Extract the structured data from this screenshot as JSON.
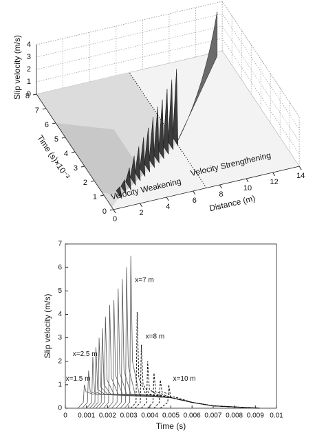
{
  "chart_data": [
    {
      "type": "surface3d",
      "zlabel": "Slip velocity (m/s)",
      "ylabel": "Time (s)×10⁻³",
      "xlabel": "Distance (m)",
      "xlim": [
        0,
        14
      ],
      "xticks": [
        0,
        2,
        4,
        6,
        8,
        10,
        12,
        14
      ],
      "ylim": [
        0,
        8
      ],
      "yticks": [
        0,
        1,
        2,
        3,
        4,
        5,
        6,
        7,
        8
      ],
      "zlim": [
        0,
        4
      ],
      "zticks": [
        0,
        1,
        2,
        3,
        4
      ],
      "grid": true,
      "annotations": [
        "Velocity Weakening",
        "Velocity Strengthening"
      ],
      "series": [
        {
          "color": "#3c3c3c",
          "x": [
            1,
            1.5,
            2,
            2.5,
            3,
            3.5,
            4,
            4.5,
            5,
            5.5,
            6,
            6.5,
            7
          ],
          "y": [
            0.7,
            0.9,
            1.1,
            1.3,
            1.5,
            1.7,
            1.9,
            2.1,
            2.3,
            2.5,
            2.7,
            2.9,
            3.1
          ],
          "values": [
            0.8,
            1.0,
            1.6,
            2.2,
            2.6,
            3.0,
            3.4,
            3.9,
            4.4,
            4.6,
            5.1,
            5.5,
            6.0
          ]
        }
      ]
    },
    {
      "type": "line",
      "xlabel": "Time (s)",
      "ylabel": "Slip velocity (m/s)",
      "xlim": [
        0,
        0.01
      ],
      "xticks": [
        0,
        0.001,
        0.002,
        0.003,
        0.004,
        0.005,
        0.006,
        0.007,
        0.008,
        0.009,
        0.01
      ],
      "ylim": [
        0,
        7
      ],
      "yticks": [
        0,
        1,
        2,
        3,
        4,
        5,
        6,
        7
      ],
      "annotations": [
        "x=1.5 m",
        "x=2.5 m",
        "x=7 m",
        "x=8 m",
        "x=10 m"
      ],
      "series": [
        {
          "color": "#555555",
          "dashed": false,
          "x": [
            0.0006,
            0.00085,
            0.0009,
            0.00098,
            0.0013,
            0.005,
            0.006,
            0.007,
            0.0092
          ],
          "values": [
            0,
            0.25,
            1.0,
            0.7,
            0.6,
            0.45,
            0.25,
            0.1,
            0
          ]
        },
        {
          "color": "#555555",
          "dashed": false,
          "x": [
            0.0008,
            0.00105,
            0.0011,
            0.00118,
            0.0015,
            0.005,
            0.006,
            0.007,
            0.0092
          ],
          "values": [
            0,
            0.25,
            1.6,
            0.7,
            0.6,
            0.45,
            0.25,
            0.1,
            0
          ]
        },
        {
          "color": "#555555",
          "dashed": false,
          "x": [
            0.001,
            0.00125,
            0.0013,
            0.00138,
            0.0017,
            0.005,
            0.006,
            0.007,
            0.0092
          ],
          "values": [
            0,
            0.25,
            2.2,
            0.7,
            0.6,
            0.45,
            0.25,
            0.1,
            0
          ]
        },
        {
          "color": "#555555",
          "dashed": false,
          "x": [
            0.00115,
            0.0014,
            0.00145,
            0.00153,
            0.00185,
            0.005,
            0.006,
            0.007,
            0.0092
          ],
          "values": [
            0,
            0.25,
            2.6,
            0.8,
            0.6,
            0.45,
            0.25,
            0.1,
            0
          ]
        },
        {
          "color": "#555555",
          "dashed": false,
          "x": [
            0.0013,
            0.00155,
            0.0016,
            0.00168,
            0.002,
            0.005,
            0.006,
            0.007,
            0.0092
          ],
          "values": [
            0,
            0.25,
            3.0,
            0.9,
            0.6,
            0.45,
            0.25,
            0.1,
            0
          ]
        },
        {
          "color": "#555555",
          "dashed": false,
          "x": [
            0.00145,
            0.0017,
            0.00175,
            0.00183,
            0.00215,
            0.005,
            0.006,
            0.007,
            0.0092
          ],
          "values": [
            0,
            0.25,
            3.4,
            1.0,
            0.6,
            0.45,
            0.25,
            0.1,
            0
          ]
        },
        {
          "color": "#555555",
          "dashed": false,
          "x": [
            0.0016,
            0.00185,
            0.0019,
            0.00198,
            0.0023,
            0.005,
            0.006,
            0.007,
            0.0092
          ],
          "values": [
            0,
            0.25,
            3.9,
            1.2,
            0.6,
            0.45,
            0.25,
            0.1,
            0
          ]
        },
        {
          "color": "#555555",
          "dashed": false,
          "x": [
            0.0018,
            0.00205,
            0.0021,
            0.00218,
            0.0025,
            0.005,
            0.006,
            0.007,
            0.0092
          ],
          "values": [
            0,
            0.25,
            4.4,
            1.3,
            0.6,
            0.45,
            0.25,
            0.1,
            0
          ]
        },
        {
          "color": "#555555",
          "dashed": false,
          "x": [
            0.002,
            0.00225,
            0.0023,
            0.00238,
            0.0027,
            0.005,
            0.006,
            0.007,
            0.0092
          ],
          "values": [
            0,
            0.25,
            4.6,
            1.4,
            0.6,
            0.45,
            0.25,
            0.1,
            0
          ]
        },
        {
          "color": "#555555",
          "dashed": false,
          "x": [
            0.0022,
            0.00245,
            0.0025,
            0.00258,
            0.0029,
            0.005,
            0.006,
            0.007,
            0.0092
          ],
          "values": [
            0,
            0.25,
            5.1,
            1.5,
            0.6,
            0.45,
            0.25,
            0.1,
            0
          ]
        },
        {
          "color": "#555555",
          "dashed": false,
          "x": [
            0.0024,
            0.00265,
            0.0027,
            0.00278,
            0.0031,
            0.005,
            0.006,
            0.007,
            0.0092
          ],
          "values": [
            0,
            0.25,
            5.5,
            1.6,
            0.6,
            0.45,
            0.25,
            0.1,
            0
          ]
        },
        {
          "color": "#555555",
          "dashed": false,
          "x": [
            0.0026,
            0.00285,
            0.0029,
            0.00298,
            0.0033,
            0.005,
            0.006,
            0.007,
            0.0092
          ],
          "values": [
            0,
            0.25,
            6.0,
            1.8,
            0.6,
            0.45,
            0.25,
            0.1,
            0
          ]
        },
        {
          "color": "#555555",
          "dashed": false,
          "x": [
            0.0028,
            0.00305,
            0.0031,
            0.00318,
            0.0035,
            0.005,
            0.006,
            0.007,
            0.0092
          ],
          "values": [
            0,
            0.25,
            6.5,
            2.0,
            0.6,
            0.45,
            0.25,
            0.1,
            0
          ]
        },
        {
          "color": "#111111",
          "dashed": true,
          "x": [
            0.0031,
            0.00335,
            0.0034,
            0.00348,
            0.0038,
            0.005,
            0.006,
            0.007,
            0.0092
          ],
          "values": [
            0,
            0.25,
            4.1,
            1.3,
            0.6,
            0.45,
            0.25,
            0.1,
            0
          ]
        },
        {
          "color": "#111111",
          "dashed": true,
          "x": [
            0.0033,
            0.00355,
            0.0036,
            0.00368,
            0.004,
            0.005,
            0.006,
            0.007,
            0.0092
          ],
          "values": [
            0,
            0.25,
            2.7,
            1.0,
            0.6,
            0.45,
            0.25,
            0.1,
            0
          ]
        },
        {
          "color": "#111111",
          "dashed": true,
          "x": [
            0.0036,
            0.00385,
            0.0039,
            0.00398,
            0.0043,
            0.005,
            0.006,
            0.007,
            0.0092
          ],
          "values": [
            0,
            0.25,
            2.0,
            0.8,
            0.6,
            0.45,
            0.25,
            0.1,
            0
          ]
        },
        {
          "color": "#111111",
          "dashed": true,
          "x": [
            0.0039,
            0.00415,
            0.0042,
            0.00428,
            0.0046,
            0.005,
            0.006,
            0.007,
            0.0092
          ],
          "values": [
            0,
            0.25,
            1.5,
            0.7,
            0.6,
            0.45,
            0.25,
            0.1,
            0
          ]
        },
        {
          "color": "#111111",
          "dashed": true,
          "x": [
            0.0042,
            0.00445,
            0.0045,
            0.00458,
            0.0049,
            0.005,
            0.006,
            0.007,
            0.0092
          ],
          "values": [
            0,
            0.25,
            1.2,
            0.7,
            0.6,
            0.45,
            0.25,
            0.1,
            0
          ]
        },
        {
          "color": "#111111",
          "dashed": true,
          "x": [
            0.0045,
            0.00485,
            0.0049,
            0.00498,
            0.0053,
            0.006,
            0.007,
            0.0092
          ],
          "values": [
            0,
            0.25,
            1.0,
            0.5,
            0.45,
            0.25,
            0.1,
            0
          ]
        }
      ]
    }
  ]
}
